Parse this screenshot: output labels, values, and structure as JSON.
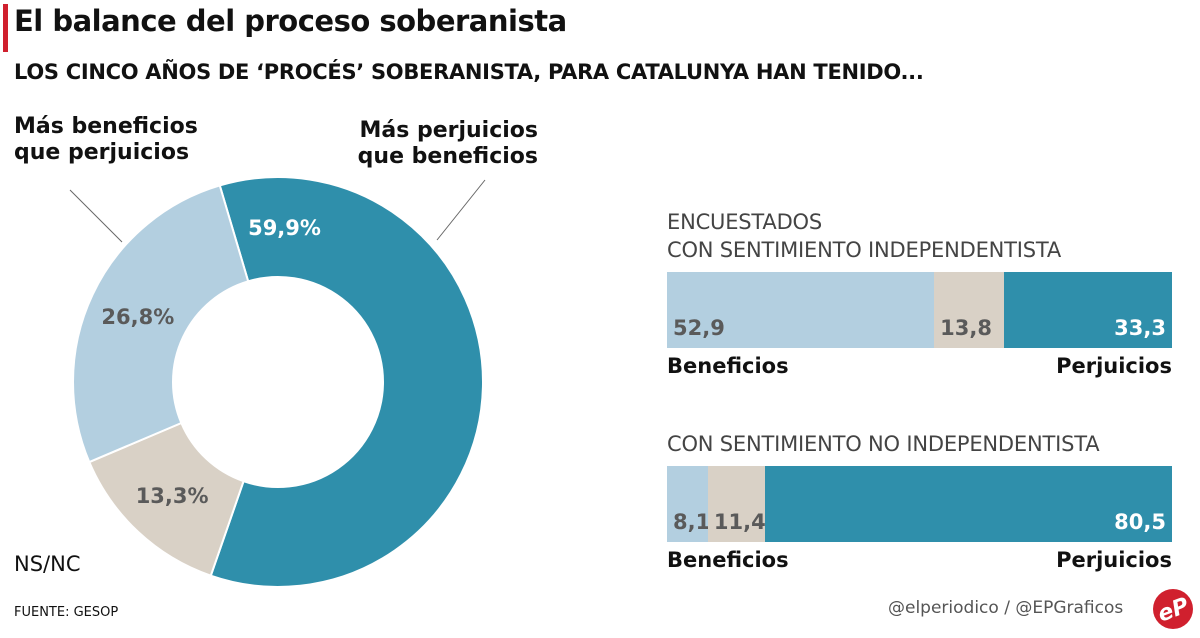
{
  "title": "El balance del proceso soberanista",
  "subtitle": "LOS CINCO AÑOS DE ‘PROCÉS’ SOBERANISTA, PARA CATALUNYA HAN TENIDO...",
  "source": "FUENTE: GESOP",
  "credits": "@elperiodico / @EPGraficos",
  "logo_text": "eP",
  "colors": {
    "perjuicios": "#2f8fab",
    "beneficios": "#b3cfe0",
    "nsnc": "#d9d1c6",
    "accent": "#d0202e"
  },
  "chart_data": [
    {
      "type": "pie",
      "donut": true,
      "categories": [
        "Más perjuicios que beneficios",
        "NS/NC",
        "Más beneficios que perjuicios"
      ],
      "values": [
        59.9,
        13.3,
        26.8
      ],
      "value_labels": [
        "59,9%",
        "13,3%",
        "26,8%"
      ],
      "labels": {
        "beneficios": "Más beneficios que perjuicios",
        "perjuicios": "Más perjuicios que beneficios",
        "nsnc": "NS/NC"
      }
    },
    {
      "type": "bar",
      "stacked": true,
      "orientation": "horizontal",
      "title_lines": [
        "ENCUESTADOS",
        "CON SENTIMIENTO INDEPENDENTISTA"
      ],
      "values": [
        52.9,
        13.8,
        33.3
      ],
      "value_labels": [
        "52,9",
        "13,8",
        "33,3"
      ],
      "left_label": "Beneficios",
      "right_label": "Perjuicios"
    },
    {
      "type": "bar",
      "stacked": true,
      "orientation": "horizontal",
      "title_lines": [
        "CON SENTIMIENTO NO INDEPENDENTISTA"
      ],
      "values": [
        8.1,
        11.4,
        80.5
      ],
      "value_labels": [
        "8,1",
        "11,4",
        "80,5"
      ],
      "left_label": "Beneficios",
      "right_label": "Perjuicios"
    }
  ]
}
